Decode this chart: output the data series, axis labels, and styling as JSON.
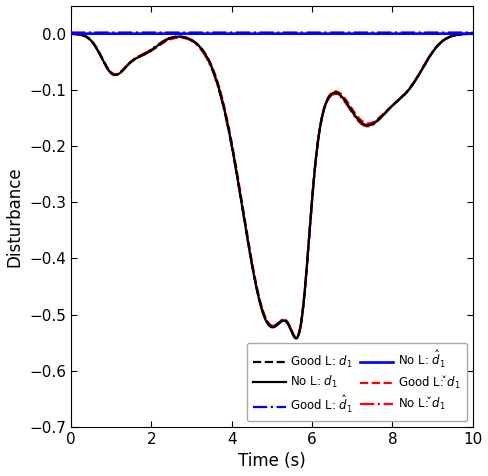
{
  "title": "",
  "xlabel": "Time (s)",
  "ylabel": "Disturbance",
  "xlim": [
    0,
    10
  ],
  "ylim": [
    -0.7,
    0.05
  ],
  "yticks": [
    0,
    -0.1,
    -0.2,
    -0.3,
    -0.4,
    -0.5,
    -0.6,
    -0.7
  ],
  "xticks": [
    0,
    2,
    4,
    6,
    8,
    10
  ],
  "background_color": "#ffffff",
  "figsize": [
    4.88,
    4.76
  ],
  "dpi": 100
}
